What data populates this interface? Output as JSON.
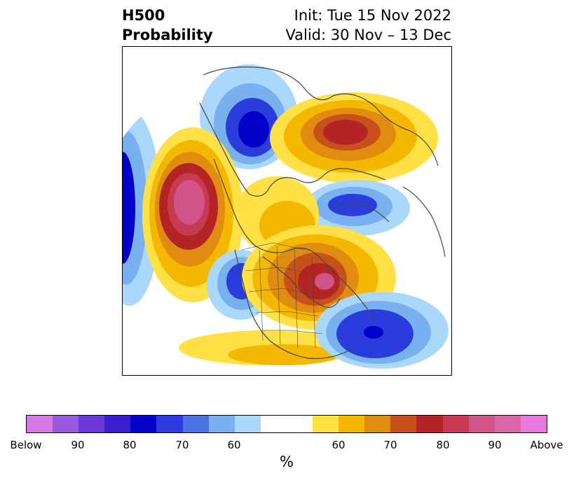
{
  "title": {
    "left_line1": "H500",
    "left_line2": "Probability",
    "right_line1": "Init: Tue 15 Nov 2022",
    "right_line2": "Valid: 30 Nov – 13 Dec"
  },
  "colorbar": {
    "unit": "%",
    "colors": {
      "below_100": "#d67ae8",
      "below_95": "#9b59e0",
      "below_90": "#6a3ad8",
      "below_85": "#3a1ed0",
      "below_80": "#0000c8",
      "below_75": "#2b3cdc",
      "below_70": "#4a73e6",
      "below_65": "#78b0f0",
      "below_60": "#aad8fa",
      "neutral": "#ffffff",
      "above_60": "#ffe045",
      "above_65": "#f5b800",
      "above_70": "#e08c10",
      "above_75": "#c8501a",
      "above_80": "#b42424",
      "above_85": "#c83a52",
      "above_90": "#d0548a",
      "above_95": "#dc64a8",
      "above_100": "#e878de"
    },
    "tick_labels": [
      "Below",
      "90",
      "80",
      "70",
      "60",
      "60",
      "70",
      "80",
      "90",
      "Above"
    ]
  },
  "map_legend_classes": [
    "below",
    "neutral",
    "above"
  ]
}
